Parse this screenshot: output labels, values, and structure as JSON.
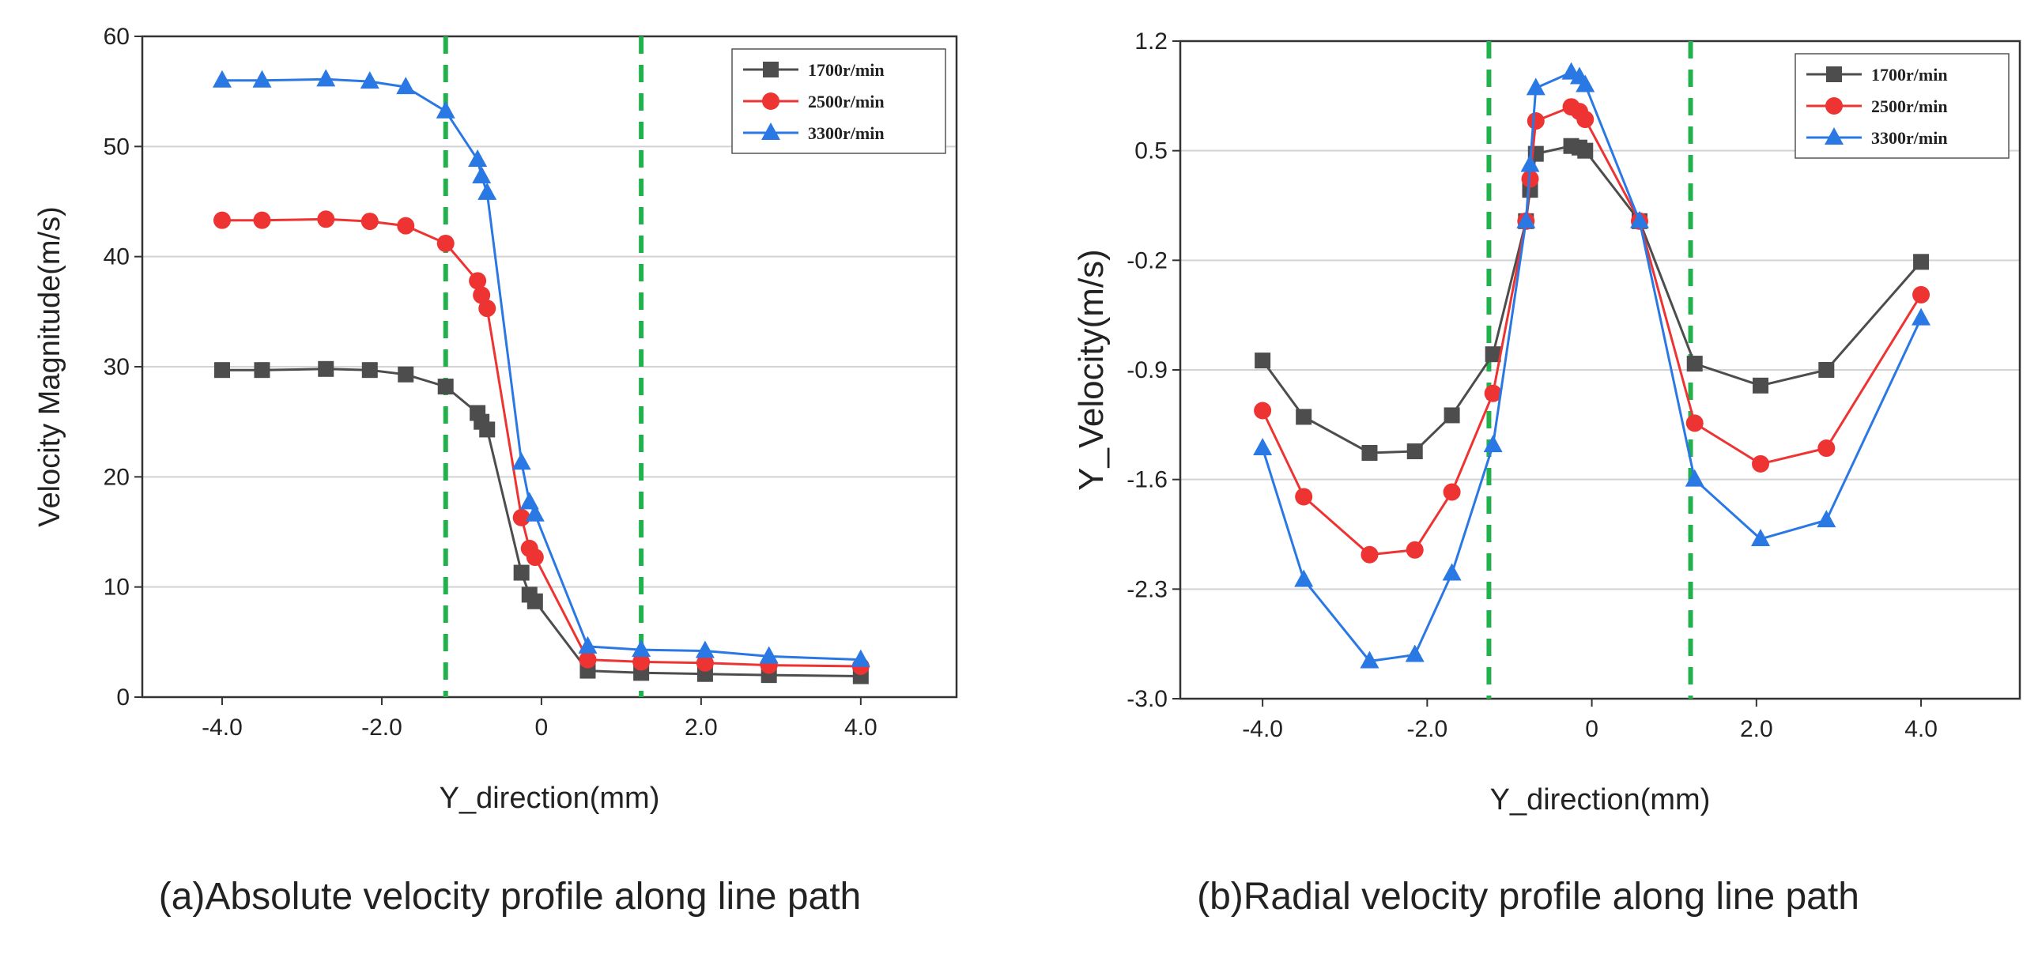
{
  "figure": {
    "captions": [
      "(a)Absolute velocity profile along line path",
      "(b)Radial velocity profile along line path"
    ]
  },
  "chart_data": [
    {
      "type": "line",
      "title": "",
      "caption": "(a)Absolute velocity profile along line path",
      "xlabel": "Y_direction(mm)",
      "ylabel": "Velocity Magnitude(m/s)",
      "xlim": [
        -5.0,
        5.2
      ],
      "ylim": [
        0,
        60
      ],
      "xticks": [
        -4.0,
        -2.0,
        0,
        2.0,
        4.0
      ],
      "xtick_labels": [
        "-4.0",
        "-2.0",
        "0",
        "2.0",
        "4.0"
      ],
      "yticks": [
        0,
        10,
        20,
        30,
        40,
        50,
        60
      ],
      "ytick_labels": [
        "0",
        "10",
        "20",
        "30",
        "40",
        "50",
        "60"
      ],
      "grid": "horizontal",
      "legend_position": "top-right",
      "reference_lines_x": [
        -1.2,
        1.25
      ],
      "series": [
        {
          "name": "1700r/min",
          "color": "#4d4d4d",
          "marker": "square",
          "x": [
            -4.0,
            -3.5,
            -2.7,
            -2.15,
            -1.7,
            -1.2,
            -0.8,
            -0.75,
            -0.68,
            -0.25,
            -0.15,
            -0.08,
            0.58,
            1.25,
            2.05,
            2.85,
            4.0
          ],
          "y": [
            29.7,
            29.7,
            29.8,
            29.7,
            29.3,
            28.2,
            25.8,
            25.0,
            24.3,
            11.3,
            9.3,
            8.7,
            2.4,
            2.2,
            2.1,
            2.0,
            1.9
          ]
        },
        {
          "name": "2500r/min",
          "color": "#ee3333",
          "marker": "circle",
          "x": [
            -4.0,
            -3.5,
            -2.7,
            -2.15,
            -1.7,
            -1.2,
            -0.8,
            -0.75,
            -0.68,
            -0.25,
            -0.15,
            -0.08,
            0.58,
            1.25,
            2.05,
            2.85,
            4.0
          ],
          "y": [
            43.3,
            43.3,
            43.4,
            43.2,
            42.8,
            41.2,
            37.8,
            36.5,
            35.3,
            16.3,
            13.5,
            12.7,
            3.4,
            3.2,
            3.1,
            2.9,
            2.8
          ]
        },
        {
          "name": "3300r/min",
          "color": "#2a78e4",
          "marker": "triangle",
          "x": [
            -4.0,
            -3.5,
            -2.7,
            -2.15,
            -1.7,
            -1.2,
            -0.8,
            -0.75,
            -0.68,
            -0.25,
            -0.15,
            -0.08,
            0.58,
            1.25,
            2.05,
            2.85,
            4.0
          ],
          "y": [
            56.0,
            56.0,
            56.1,
            55.9,
            55.4,
            53.2,
            48.8,
            47.3,
            45.8,
            21.3,
            17.7,
            16.6,
            4.6,
            4.3,
            4.2,
            3.7,
            3.4
          ]
        }
      ]
    },
    {
      "type": "line",
      "title": "",
      "caption": "(b)Radial velocity profile along line path",
      "xlabel": "Y_direction(mm)",
      "ylabel": "Y_Velocity(m/s)",
      "xlim": [
        -5.0,
        5.2
      ],
      "ylim": [
        -3.0,
        1.2
      ],
      "xticks": [
        -4.0,
        -2.0,
        0,
        2.0,
        4.0
      ],
      "xtick_labels": [
        "-4.0",
        "-2.0",
        "0",
        "2.0",
        "4.0"
      ],
      "yticks": [
        -3.0,
        -2.3,
        -1.6,
        -0.9,
        -0.2,
        0.5,
        1.2
      ],
      "ytick_labels": [
        "-3.0",
        "-2.3",
        "-1.6",
        "-0.9",
        "-0.2",
        "0.5",
        "1.2"
      ],
      "grid": "horizontal",
      "legend_position": "top-right",
      "reference_lines_x": [
        -1.25,
        1.2
      ],
      "series": [
        {
          "name": "1700r/min",
          "color": "#4d4d4d",
          "marker": "square",
          "x": [
            -4.0,
            -3.5,
            -2.7,
            -2.15,
            -1.7,
            -1.2,
            -0.8,
            -0.75,
            -0.68,
            -0.25,
            -0.15,
            -0.08,
            0.58,
            1.25,
            2.05,
            2.85,
            4.0
          ],
          "y": [
            -0.84,
            -1.2,
            -1.43,
            -1.42,
            -1.19,
            -0.8,
            0.05,
            0.25,
            0.48,
            0.53,
            0.52,
            0.5,
            0.05,
            -0.86,
            -1.0,
            -0.9,
            -0.21
          ]
        },
        {
          "name": "2500r/min",
          "color": "#ee3333",
          "marker": "circle",
          "x": [
            -4.0,
            -3.5,
            -2.7,
            -2.15,
            -1.7,
            -1.2,
            -0.8,
            -0.75,
            -0.68,
            -0.25,
            -0.15,
            -0.08,
            0.58,
            1.25,
            2.05,
            2.85,
            4.0
          ],
          "y": [
            -1.16,
            -1.71,
            -2.08,
            -2.05,
            -1.68,
            -1.05,
            0.05,
            0.32,
            0.69,
            0.78,
            0.75,
            0.7,
            0.05,
            -1.24,
            -1.5,
            -1.4,
            -0.42
          ]
        },
        {
          "name": "3300r/min",
          "color": "#2a78e4",
          "marker": "triangle",
          "x": [
            -4.0,
            -3.5,
            -2.7,
            -2.15,
            -1.7,
            -1.2,
            -0.8,
            -0.75,
            -0.68,
            -0.25,
            -0.15,
            -0.08,
            0.58,
            1.25,
            2.05,
            2.85,
            4.0
          ],
          "y": [
            -1.4,
            -2.24,
            -2.76,
            -2.72,
            -2.2,
            -1.38,
            0.05,
            0.41,
            0.9,
            1.0,
            0.97,
            0.92,
            0.05,
            -1.6,
            -1.98,
            -1.86,
            -0.57
          ]
        }
      ]
    }
  ]
}
